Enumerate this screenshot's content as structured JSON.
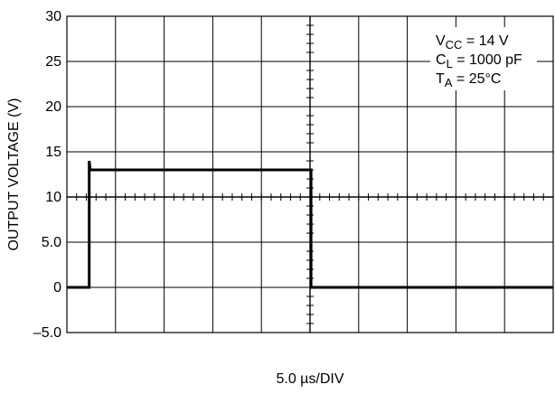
{
  "chart_data": {
    "type": "line",
    "title": "",
    "xlabel": "5.0 µs/DIV",
    "ylabel": "OUTPUT VOLTAGE (V)",
    "y_ticks": [
      {
        "value": 30,
        "label": "30"
      },
      {
        "value": 25,
        "label": "25"
      },
      {
        "value": 20,
        "label": "20"
      },
      {
        "value": 15,
        "label": "15"
      },
      {
        "value": 10,
        "label": "10"
      },
      {
        "value": 5,
        "label": "5.0"
      },
      {
        "value": 0,
        "label": "0"
      },
      {
        "value": -5,
        "label": "–5.0"
      }
    ],
    "ylim": [
      -5,
      30
    ],
    "xlim": [
      0,
      50
    ],
    "x_divisions": 10,
    "y_divisions": 7,
    "grid": true,
    "minor_ticks_per_division": 5,
    "center_axes": {
      "x_value": 25,
      "y_value": 10
    },
    "series": [
      {
        "x": [
          0,
          2.3,
          2.3,
          2.4,
          25.1,
          25.1,
          50
        ],
        "y": [
          0,
          0,
          14,
          13,
          13,
          0,
          0
        ]
      }
    ],
    "annotations": [
      {
        "main": "V",
        "sub": "CC",
        "rest": " = 14 V"
      },
      {
        "main": "C",
        "sub": "L",
        "rest": " = 1000 pF"
      },
      {
        "main": "T",
        "sub": "A",
        "rest": " = 25°C"
      }
    ],
    "colors": {
      "grid": "#000000",
      "trace": "#000000",
      "background": "#ffffff"
    }
  }
}
